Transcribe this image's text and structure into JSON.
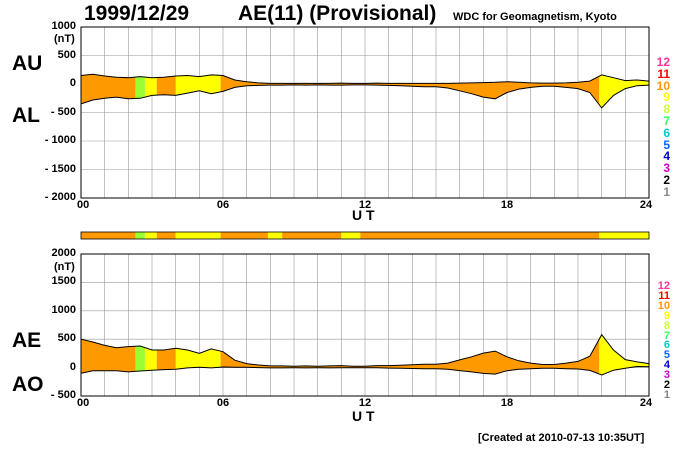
{
  "header": {
    "date": "1999/12/29",
    "title": "AE(11) (Provisional)",
    "organization": "WDC for Geomagnetism, Kyoto"
  },
  "footer": {
    "created": "[Created at 2010-07-13 10:35UT]"
  },
  "legend": {
    "levels": [
      "12",
      "11",
      "10",
      "9",
      "8",
      "7",
      "6",
      "5",
      "4",
      "3",
      "2",
      "1"
    ],
    "colors": [
      "#ff3399",
      "#ff0000",
      "#ff9900",
      "#ffff00",
      "#ccff33",
      "#33ff66",
      "#00cccc",
      "#0066ff",
      "#0000cc",
      "#cc00cc",
      "#000000",
      "#888888"
    ]
  },
  "colors": {
    "grid": "#999999",
    "default_fill": "#ff9900",
    "yellow_fill": "#ffff00",
    "green_fill": "#99ff33"
  },
  "chart_data": [
    {
      "type": "area",
      "panel": "AU/AL",
      "series_labels": [
        "AU",
        "AL"
      ],
      "ylabel": "(nT)",
      "ylim": [
        -2000,
        1000
      ],
      "yticks": [
        1000,
        500,
        0,
        -500,
        -1000,
        -1500,
        -2000
      ],
      "ytick_labels": [
        "1000",
        "500",
        "0",
        "- 500",
        "- 1000",
        "- 1500",
        "- 2000"
      ],
      "xlabel": "U T",
      "xlim": [
        0,
        24
      ],
      "xticks": [
        0,
        6,
        12,
        18,
        24
      ],
      "xtick_labels": [
        "00",
        "06",
        "12",
        "18",
        "24"
      ],
      "grid": true,
      "x": [
        0,
        0.5,
        1,
        1.5,
        2,
        2.5,
        3,
        3.5,
        4,
        4.5,
        5,
        5.5,
        6,
        6.5,
        7,
        7.5,
        8,
        8.5,
        9,
        9.5,
        10,
        10.5,
        11,
        11.5,
        12,
        12.5,
        13,
        13.5,
        14,
        14.5,
        15,
        15.5,
        16,
        16.5,
        17,
        17.5,
        18,
        18.5,
        19,
        19.5,
        20,
        20.5,
        21,
        21.5,
        22,
        22.5,
        23,
        23.5,
        24
      ],
      "au": [
        150,
        170,
        140,
        120,
        110,
        130,
        110,
        120,
        140,
        150,
        130,
        160,
        150,
        70,
        40,
        20,
        10,
        10,
        10,
        10,
        10,
        10,
        15,
        10,
        10,
        15,
        10,
        10,
        10,
        10,
        10,
        10,
        15,
        20,
        25,
        30,
        40,
        30,
        20,
        15,
        15,
        20,
        30,
        50,
        160,
        110,
        60,
        70,
        50
      ],
      "al": [
        -350,
        -280,
        -250,
        -230,
        -260,
        -250,
        -200,
        -190,
        -200,
        -160,
        -120,
        -170,
        -130,
        -60,
        -30,
        -25,
        -20,
        -20,
        -15,
        -20,
        -15,
        -20,
        -20,
        -15,
        -15,
        -20,
        -25,
        -30,
        -40,
        -50,
        -50,
        -70,
        -120,
        -170,
        -230,
        -260,
        -150,
        -90,
        -60,
        -40,
        -40,
        -60,
        -80,
        -150,
        -420,
        -200,
        -80,
        -30,
        -20
      ],
      "activity_bands": [
        {
          "start": 0,
          "end": 2.3,
          "color": "#ff9900"
        },
        {
          "start": 2.3,
          "end": 2.7,
          "color": "#99ff33"
        },
        {
          "start": 2.7,
          "end": 3.2,
          "color": "#ffff00"
        },
        {
          "start": 3.2,
          "end": 4.0,
          "color": "#ff9900"
        },
        {
          "start": 4.0,
          "end": 5.9,
          "color": "#ffff00"
        },
        {
          "start": 5.9,
          "end": 21.9,
          "color": "#ff9900"
        },
        {
          "start": 21.9,
          "end": 24,
          "color": "#ffff00"
        }
      ]
    },
    {
      "type": "area",
      "panel": "AE/AO",
      "series_labels": [
        "AE",
        "AO"
      ],
      "ylabel": "(nT)",
      "ylim": [
        -500,
        2000
      ],
      "yticks": [
        2000,
        1500,
        1000,
        500,
        0,
        -500
      ],
      "ytick_labels": [
        "2000",
        "1500",
        "1000",
        "500",
        "0",
        "- 500"
      ],
      "xlabel": "U T",
      "xlim": [
        0,
        24
      ],
      "xticks": [
        0,
        6,
        12,
        18,
        24
      ],
      "xtick_labels": [
        "00",
        "06",
        "12",
        "18",
        "24"
      ],
      "grid": true,
      "x": [
        0,
        0.5,
        1,
        1.5,
        2,
        2.5,
        3,
        3.5,
        4,
        4.5,
        5,
        5.5,
        6,
        6.5,
        7,
        7.5,
        8,
        8.5,
        9,
        9.5,
        10,
        10.5,
        11,
        11.5,
        12,
        12.5,
        13,
        13.5,
        14,
        14.5,
        15,
        15.5,
        16,
        16.5,
        17,
        17.5,
        18,
        18.5,
        19,
        19.5,
        20,
        20.5,
        21,
        21.5,
        22,
        22.5,
        23,
        23.5,
        24
      ],
      "ae": [
        500,
        450,
        390,
        350,
        370,
        380,
        310,
        310,
        340,
        310,
        250,
        330,
        280,
        130,
        70,
        45,
        30,
        30,
        25,
        30,
        25,
        30,
        35,
        25,
        25,
        35,
        35,
        40,
        50,
        60,
        60,
        80,
        135,
        190,
        255,
        290,
        190,
        120,
        80,
        55,
        55,
        80,
        110,
        200,
        580,
        310,
        140,
        100,
        70
      ],
      "ao": [
        -100,
        -55,
        -55,
        -55,
        -75,
        -60,
        -45,
        -35,
        -30,
        -5,
        5,
        -5,
        10,
        5,
        5,
        0,
        -5,
        -5,
        -3,
        -5,
        -3,
        -5,
        -3,
        -3,
        -3,
        -3,
        -8,
        -10,
        -15,
        -20,
        -20,
        -30,
        -52,
        -75,
        -102,
        -115,
        -55,
        -30,
        -20,
        -12,
        -12,
        -20,
        -25,
        -50,
        -130,
        -45,
        -10,
        20,
        15
      ]
    }
  ],
  "status_bar": {
    "segments": [
      {
        "start": 0,
        "end": 2.3,
        "color": "#ff9900"
      },
      {
        "start": 2.3,
        "end": 2.7,
        "color": "#99ff33"
      },
      {
        "start": 2.7,
        "end": 3.2,
        "color": "#ffff00"
      },
      {
        "start": 3.2,
        "end": 4.0,
        "color": "#ff9900"
      },
      {
        "start": 4.0,
        "end": 5.9,
        "color": "#ffff00"
      },
      {
        "start": 5.9,
        "end": 7.9,
        "color": "#ff9900"
      },
      {
        "start": 7.9,
        "end": 8.5,
        "color": "#ffff00"
      },
      {
        "start": 8.5,
        "end": 11.0,
        "color": "#ff9900"
      },
      {
        "start": 11.0,
        "end": 11.8,
        "color": "#ffff00"
      },
      {
        "start": 11.8,
        "end": 21.9,
        "color": "#ff9900"
      },
      {
        "start": 21.9,
        "end": 24,
        "color": "#ffff00"
      }
    ]
  }
}
